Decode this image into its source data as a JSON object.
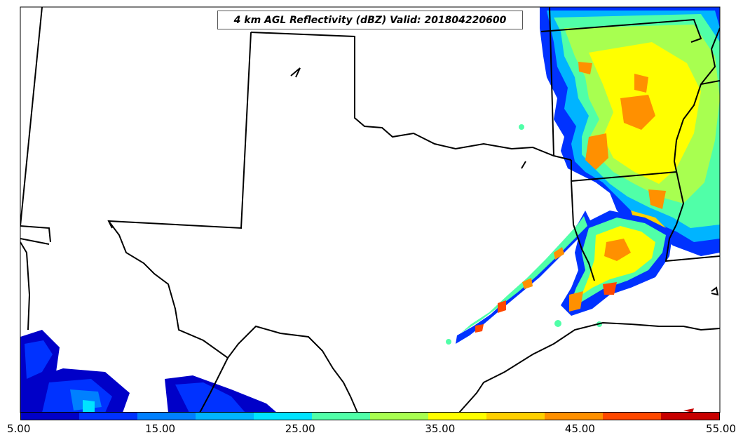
{
  "title": "4 km AGL Reflectivity (dBZ) Valid: 201804220600",
  "colorbar": {
    "colors": [
      "#0000c8",
      "#0032ff",
      "#0080ff",
      "#00b4ff",
      "#00e4ff",
      "#50ffa8",
      "#a8ff50",
      "#ffff00",
      "#ffd000",
      "#ff9000",
      "#ff4800",
      "#c80000"
    ],
    "ticks": [
      "5.00",
      "15.00",
      "25.00",
      "35.00",
      "45.00",
      "55.00"
    ]
  },
  "chart_data": {
    "type": "heatmap",
    "title": "4 km AGL Reflectivity (dBZ) Valid: 201804220600",
    "variable": "Reflectivity",
    "units": "dBZ",
    "level": "4 km AGL",
    "valid_time": "201804220600",
    "colorbar_range": [
      5,
      55
    ],
    "colorbar_ticks": [
      5,
      15,
      25,
      35,
      45,
      55
    ],
    "colorbar_interval": 5
  }
}
